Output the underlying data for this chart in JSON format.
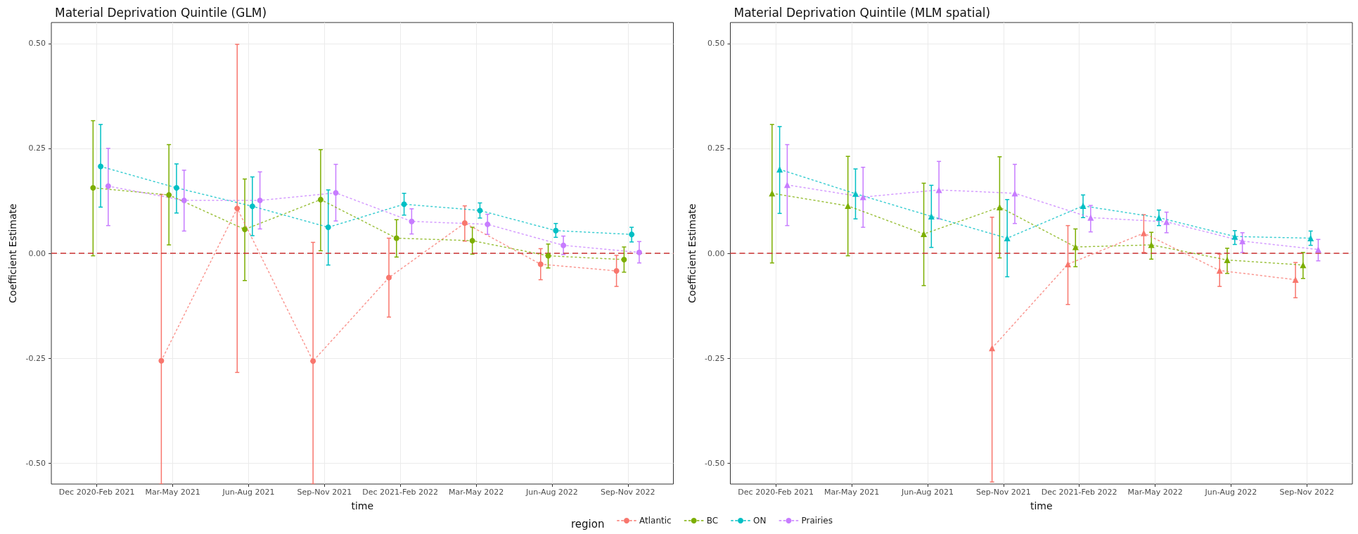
{
  "chart_data": [
    {
      "type": "line",
      "title": "Material Deprivation Quintile (GLM)",
      "xlabel": "time",
      "ylabel": "Coefficient Estimate",
      "legend_title": "region",
      "categories": [
        "Dec 2020-Feb 2021",
        "Mar-May 2021",
        "Jun-Aug 2021",
        "Sep-Nov 2021",
        "Dec 2021-Feb 2022",
        "Mar-May 2022",
        "Jun-Aug 2022",
        "Sep-Nov 2022"
      ],
      "ylim": [
        -0.55,
        0.55
      ],
      "yticks": [
        {
          "value": -0.5,
          "label": "-0.50"
        },
        {
          "value": -0.25,
          "label": "-0.25"
        },
        {
          "value": 0,
          "label": "0.00"
        },
        {
          "value": 0.25,
          "label": "0.25"
        },
        {
          "value": 0.5,
          "label": "0.50"
        }
      ],
      "grid": true,
      "legend": "bottom",
      "marker": "circle",
      "line_style": "dotted",
      "ref_lines": [
        {
          "axis": "y",
          "value": 0,
          "color": "#cc3333",
          "line_style": "dashed"
        }
      ],
      "series": [
        {
          "name": "Atlantic",
          "color": "#f8766d",
          "values": [
            null,
            -0.256,
            0.107,
            -0.257,
            -0.058,
            0.072,
            -0.026,
            -0.042
          ],
          "errors": [
            null,
            [
              -0.55,
              0.14
            ],
            [
              -0.284,
              0.498
            ],
            [
              -0.55,
              0.026
            ],
            [
              -0.152,
              0.036
            ],
            [
              0.029,
              0.113
            ],
            [
              -0.063,
              0.011
            ],
            [
              -0.079,
              -0.005
            ]
          ]
        },
        {
          "name": "BC",
          "color": "#7cae00",
          "values": [
            0.156,
            0.139,
            0.057,
            0.128,
            0.036,
            0.03,
            -0.006,
            -0.015
          ],
          "errors": [
            [
              -0.006,
              0.316
            ],
            [
              0.02,
              0.259
            ],
            [
              -0.065,
              0.177
            ],
            [
              0.006,
              0.247
            ],
            [
              -0.009,
              0.08
            ],
            [
              -0.002,
              0.062
            ],
            [
              -0.035,
              0.022
            ],
            [
              -0.045,
              0.015
            ]
          ]
        },
        {
          "name": "ON",
          "color": "#00bfc4",
          "values": [
            0.207,
            0.156,
            0.112,
            0.062,
            0.117,
            0.102,
            0.054,
            0.045
          ],
          "errors": [
            [
              0.11,
              0.307
            ],
            [
              0.096,
              0.213
            ],
            [
              0.042,
              0.182
            ],
            [
              -0.028,
              0.151
            ],
            [
              0.091,
              0.143
            ],
            [
              0.084,
              0.12
            ],
            [
              0.038,
              0.071
            ],
            [
              0.027,
              0.062
            ]
          ]
        },
        {
          "name": "Prairies",
          "color": "#c77cff",
          "values": [
            0.16,
            0.126,
            0.126,
            0.144,
            0.076,
            0.069,
            0.019,
            0.002
          ],
          "errors": [
            [
              0.066,
              0.25
            ],
            [
              0.053,
              0.198
            ],
            [
              0.058,
              0.194
            ],
            [
              0.077,
              0.212
            ],
            [
              0.046,
              0.106
            ],
            [
              0.045,
              0.093
            ],
            [
              -0.003,
              0.041
            ],
            [
              -0.023,
              0.028
            ]
          ]
        }
      ]
    },
    {
      "type": "line",
      "title": "Material Deprivation Quintile (MLM spatial)",
      "xlabel": "time",
      "ylabel": "Coefficient Estimate",
      "categories": [
        "Dec 2020-Feb 2021",
        "Mar-May 2021",
        "Jun-Aug 2021",
        "Sep-Nov 2021",
        "Dec 2021-Feb 2022",
        "Mar-May 2022",
        "Jun-Aug 2022",
        "Sep-Nov 2022"
      ],
      "ylim": [
        -0.55,
        0.55
      ],
      "yticks": [
        {
          "value": -0.5,
          "label": "-0.50"
        },
        {
          "value": -0.25,
          "label": "-0.25"
        },
        {
          "value": 0,
          "label": "0.00"
        },
        {
          "value": 0.25,
          "label": "0.25"
        },
        {
          "value": 0.5,
          "label": "0.50"
        }
      ],
      "grid": true,
      "marker": "triangle",
      "line_style": "dotted",
      "ref_lines": [
        {
          "axis": "y",
          "value": 0,
          "color": "#cc3333",
          "line_style": "dashed"
        }
      ],
      "series": [
        {
          "name": "Atlantic",
          "color": "#f8766d",
          "values": [
            null,
            null,
            null,
            -0.226,
            -0.026,
            0.048,
            -0.041,
            -0.063
          ],
          "errors": [
            null,
            null,
            null,
            [
              -0.545,
              0.086
            ],
            [
              -0.122,
              0.066
            ],
            [
              0.002,
              0.092
            ],
            [
              -0.079,
              -0.002
            ],
            [
              -0.106,
              -0.022
            ]
          ]
        },
        {
          "name": "BC",
          "color": "#7cae00",
          "values": [
            0.143,
            0.113,
            0.046,
            0.11,
            0.015,
            0.02,
            -0.016,
            -0.028
          ],
          "errors": [
            [
              -0.023,
              0.307
            ],
            [
              -0.006,
              0.231
            ],
            [
              -0.077,
              0.167
            ],
            [
              -0.011,
              0.23
            ],
            [
              -0.032,
              0.058
            ],
            [
              -0.014,
              0.05
            ],
            [
              -0.048,
              0.012
            ],
            [
              -0.06,
              0.002
            ]
          ]
        },
        {
          "name": "ON",
          "color": "#00bfc4",
          "values": [
            0.2,
            0.142,
            0.088,
            0.036,
            0.113,
            0.085,
            0.04,
            0.036
          ],
          "errors": [
            [
              0.095,
              0.302
            ],
            [
              0.082,
              0.201
            ],
            [
              0.014,
              0.162
            ],
            [
              -0.056,
              0.128
            ],
            [
              0.085,
              0.139
            ],
            [
              0.066,
              0.103
            ],
            [
              0.021,
              0.054
            ],
            [
              0.019,
              0.053
            ]
          ]
        },
        {
          "name": "Prairies",
          "color": "#c77cff",
          "values": [
            0.163,
            0.134,
            0.151,
            0.143,
            0.085,
            0.075,
            0.029,
            0.009
          ],
          "errors": [
            [
              0.066,
              0.259
            ],
            [
              0.062,
              0.205
            ],
            [
              0.082,
              0.219
            ],
            [
              0.071,
              0.212
            ],
            [
              0.051,
              0.114
            ],
            [
              0.049,
              0.098
            ],
            [
              0.002,
              0.049
            ],
            [
              -0.018,
              0.033
            ]
          ]
        }
      ]
    }
  ]
}
